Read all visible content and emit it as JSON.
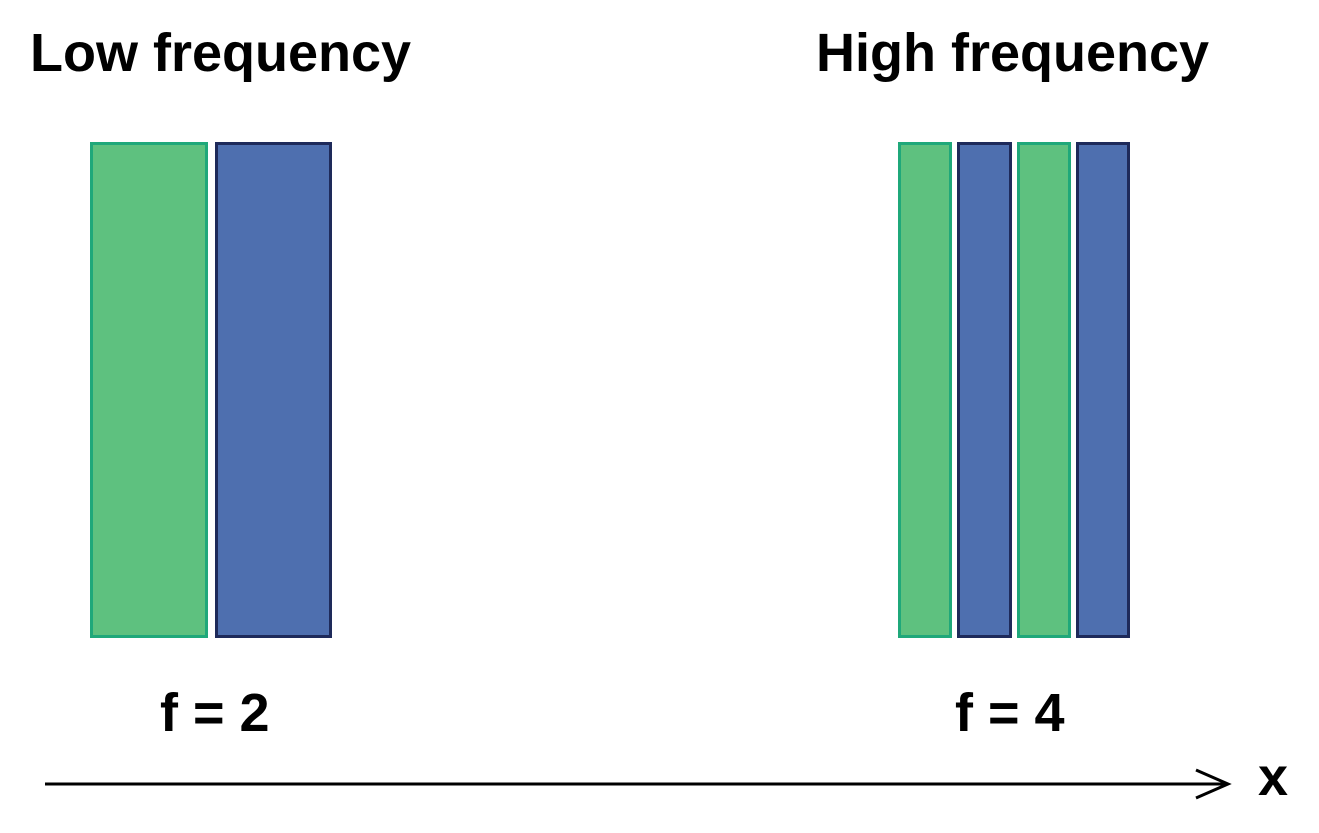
{
  "panels": [
    {
      "title": "Low frequency",
      "frequency_label": "f = 2",
      "stripes": [
        "green",
        "blue"
      ]
    },
    {
      "title": "High frequency",
      "frequency_label": "f = 4",
      "stripes": [
        "green",
        "blue",
        "green",
        "blue"
      ]
    }
  ],
  "colors": {
    "green_fill": "#5ec17f",
    "green_border": "#1fa87a",
    "blue_fill": "#4e6faf",
    "blue_border": "#1e2a5a",
    "text": "#000000"
  },
  "axis": {
    "label": "x"
  }
}
